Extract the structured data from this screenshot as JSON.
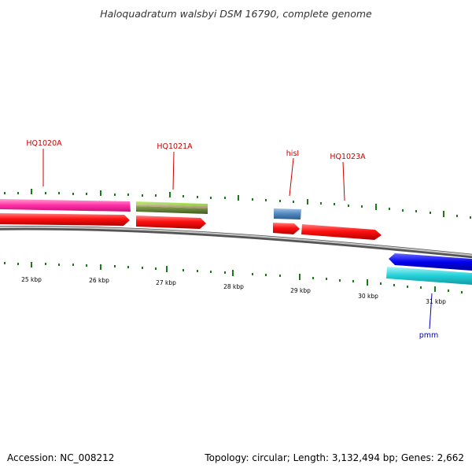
{
  "title": "Haloquadratum walsbyi DSM 16790, complete genome",
  "accession": "Accession: NC_008212",
  "topology": "Topology: circular; Length: 3,132,494 bp; Genes: 2,662",
  "colors": {
    "forward_cds": "#ff1111",
    "pink": "#ff33aa",
    "lime": "#99dd44",
    "olive": "#668833",
    "steelblue": "#4f86bd",
    "blue": "#0000ee",
    "cyan": "#22d0d8",
    "backbone": "#888888",
    "tick": "#1a7a1a",
    "label_red": "#cc0000",
    "label_blue": "#0000bb"
  },
  "scale_labels": [
    "25 kbp",
    "26 kbp",
    "27 kbp",
    "28 kbp",
    "29 kbp",
    "30 kbp",
    "31 kbp"
  ],
  "gene_labels": {
    "hq1020a": "HQ1020A",
    "hq1021a": "HQ1021A",
    "hisi": "hisI",
    "hq1023a": "HQ1023A",
    "pmm": "pmm"
  }
}
